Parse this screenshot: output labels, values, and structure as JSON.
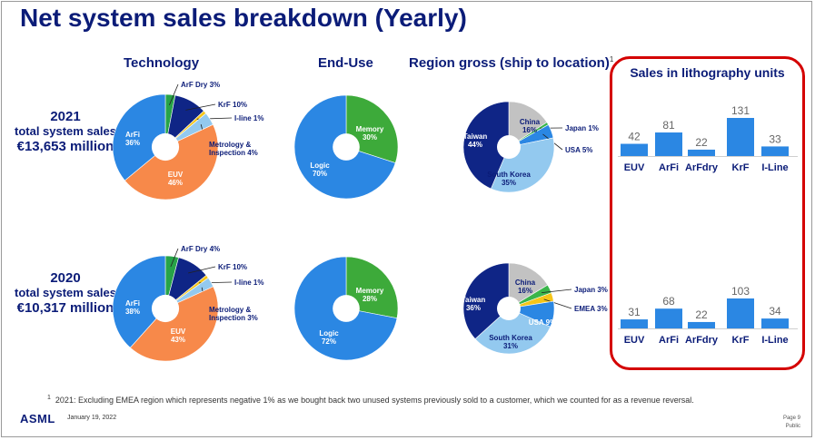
{
  "title": "Net system sales breakdown (Yearly)",
  "headers": {
    "technology": "Technology",
    "end_use": "End-Use",
    "region": "Region gross (ship to location)",
    "region_note": "1",
    "lithography": "Sales in lithography units"
  },
  "years": [
    {
      "year": "2021",
      "subtitle": "total system sales",
      "amount": "€13,653 million"
    },
    {
      "year": "2020",
      "subtitle": "total system sales",
      "amount": "€10,317 million"
    }
  ],
  "colors": {
    "navy": "#0b1c78",
    "arfi": "#2b87e3",
    "euv": "#f7894a",
    "arf_dry": "#27a348",
    "krf": "#0f2586",
    "iline": "#f5c518",
    "metrology": "#93c9ef",
    "memory": "#3daa3a",
    "logic": "#2b87e3",
    "taiwan": "#0f2586",
    "china": "#c2c2c2",
    "japan": "#39b54a",
    "usa": "#2b87e3",
    "south_korea": "#93c9ef",
    "emea": "#f5c518",
    "bar": "#2b87e3",
    "highlight": "#d40000"
  },
  "chart_data": [
    {
      "type": "pie",
      "title": "Technology",
      "period": "2021",
      "slices": [
        {
          "label": "ArF Dry 3%",
          "value": 3
        },
        {
          "label": "KrF 10%",
          "value": 10
        },
        {
          "label": "I-line 1%",
          "value": 1
        },
        {
          "label": "Metrology & Inspection 4%",
          "value": 4
        },
        {
          "label": "EUV 46%",
          "value": 46
        },
        {
          "label": "ArFi 36%",
          "value": 36
        }
      ]
    },
    {
      "type": "pie",
      "title": "End-Use",
      "period": "2021",
      "slices": [
        {
          "label": "Memory 30%",
          "value": 30
        },
        {
          "label": "Logic 70%",
          "value": 70
        }
      ]
    },
    {
      "type": "pie",
      "title": "Region gross (ship to location)",
      "period": "2021",
      "slices": [
        {
          "label": "China 16%",
          "value": 16
        },
        {
          "label": "Japan 1%",
          "value": 1
        },
        {
          "label": "USA 5%",
          "value": 5
        },
        {
          "label": "South Korea 35%",
          "value": 35
        },
        {
          "label": "Taiwan 44%",
          "value": 44
        }
      ]
    },
    {
      "type": "bar",
      "title": "Sales in lithography units",
      "period": "2021",
      "categories": [
        "EUV",
        "ArFi",
        "ArFdry",
        "KrF",
        "I-Line"
      ],
      "values": [
        42,
        81,
        22,
        131,
        33
      ]
    },
    {
      "type": "pie",
      "title": "Technology",
      "period": "2020",
      "slices": [
        {
          "label": "ArF Dry 4%",
          "value": 4
        },
        {
          "label": "KrF 10%",
          "value": 10
        },
        {
          "label": "I-line 1%",
          "value": 1
        },
        {
          "label": "Metrology & Inspection 3%",
          "value": 3
        },
        {
          "label": "EUV 43%",
          "value": 43
        },
        {
          "label": "ArFi 38%",
          "value": 38
        }
      ]
    },
    {
      "type": "pie",
      "title": "End-Use",
      "period": "2020",
      "slices": [
        {
          "label": "Memory 28%",
          "value": 28
        },
        {
          "label": "Logic 72%",
          "value": 72
        }
      ]
    },
    {
      "type": "pie",
      "title": "Region gross (ship to location)",
      "period": "2020",
      "slices": [
        {
          "label": "China 16%",
          "value": 16
        },
        {
          "label": "Japan 3%",
          "value": 3
        },
        {
          "label": "EMEA 3%",
          "value": 3
        },
        {
          "label": "USA 9%",
          "value": 9
        },
        {
          "label": "South Korea 31%",
          "value": 31
        },
        {
          "label": "Taiwan 36%",
          "value": 36
        }
      ]
    },
    {
      "type": "bar",
      "title": "Sales in lithography units",
      "period": "2020",
      "categories": [
        "EUV",
        "ArFi",
        "ArFdry",
        "KrF",
        "I-Line"
      ],
      "values": [
        31,
        68,
        22,
        103,
        34
      ]
    }
  ],
  "footnote": {
    "marker": "1",
    "text": "2021: Excluding EMEA region which represents negative 1% as we bought back two unused systems previously sold to a customer, which we counted for as a revenue reversal."
  },
  "footer": {
    "logo": "ASML",
    "date": "January 19, 2022",
    "page": "Page 9",
    "classification": "Public"
  }
}
